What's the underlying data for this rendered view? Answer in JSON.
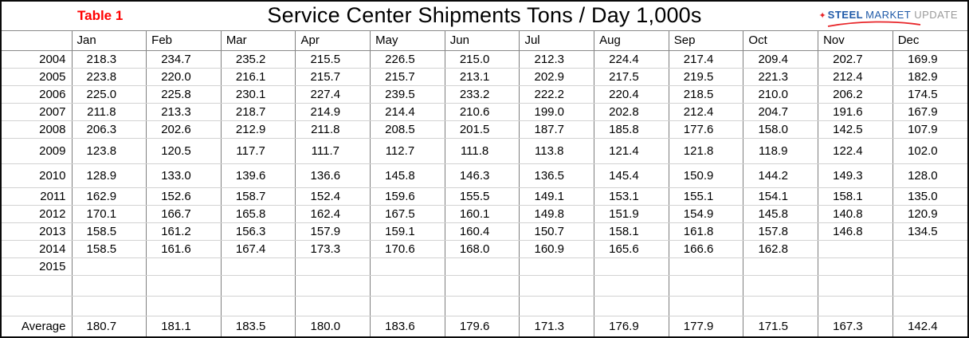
{
  "header": {
    "table_label": "Table 1",
    "title": "Service Center Shipments Tons / Day 1,000s",
    "logo": {
      "steel": "STEEL",
      "market": "MARKET",
      "update": "UPDATE"
    }
  },
  "colors": {
    "table_label_red": "#ff0000",
    "logo_blue": "#1f5aa8",
    "logo_gray": "#9a9a9a",
    "logo_red": "#e8262a"
  },
  "chart_data": {
    "type": "table",
    "title": "Service Center Shipments Tons / Day 1,000s",
    "months": [
      "Jan",
      "Feb",
      "Mar",
      "Apr",
      "May",
      "Jun",
      "Jul",
      "Aug",
      "Sep",
      "Oct",
      "Nov",
      "Dec"
    ],
    "rows": [
      {
        "label": "2004",
        "values": [
          "218.3",
          "234.7",
          "235.2",
          "215.5",
          "226.5",
          "215.0",
          "212.3",
          "224.4",
          "217.4",
          "209.4",
          "202.7",
          "169.9"
        ]
      },
      {
        "label": "2005",
        "values": [
          "223.8",
          "220.0",
          "216.1",
          "215.7",
          "215.7",
          "213.1",
          "202.9",
          "217.5",
          "219.5",
          "221.3",
          "212.4",
          "182.9"
        ]
      },
      {
        "label": "2006",
        "values": [
          "225.0",
          "225.8",
          "230.1",
          "227.4",
          "239.5",
          "233.2",
          "222.2",
          "220.4",
          "218.5",
          "210.0",
          "206.2",
          "174.5"
        ]
      },
      {
        "label": "2007",
        "values": [
          "211.8",
          "213.3",
          "218.7",
          "214.9",
          "214.4",
          "210.6",
          "199.0",
          "202.8",
          "212.4",
          "204.7",
          "191.6",
          "167.9"
        ]
      },
      {
        "label": "2008",
        "values": [
          "206.3",
          "202.6",
          "212.9",
          "211.8",
          "208.5",
          "201.5",
          "187.7",
          "185.8",
          "177.6",
          "158.0",
          "142.5",
          "107.9"
        ]
      },
      {
        "label": "2009",
        "values": [
          "123.8",
          "120.5",
          "117.7",
          "111.7",
          "112.7",
          "111.8",
          "113.8",
          "121.4",
          "121.8",
          "118.9",
          "122.4",
          "102.0"
        ]
      },
      {
        "label": "2010",
        "values": [
          "128.9",
          "133.0",
          "139.6",
          "136.6",
          "145.8",
          "146.3",
          "136.5",
          "145.4",
          "150.9",
          "144.2",
          "149.3",
          "128.0"
        ]
      },
      {
        "label": "2011",
        "values": [
          "162.9",
          "152.6",
          "158.7",
          "152.4",
          "159.6",
          "155.5",
          "149.1",
          "153.1",
          "155.1",
          "154.1",
          "158.1",
          "135.0"
        ]
      },
      {
        "label": "2012",
        "values": [
          "170.1",
          "166.7",
          "165.8",
          "162.4",
          "167.5",
          "160.1",
          "149.8",
          "151.9",
          "154.9",
          "145.8",
          "140.8",
          "120.9"
        ]
      },
      {
        "label": "2013",
        "values": [
          "158.5",
          "161.2",
          "156.3",
          "157.9",
          "159.1",
          "160.4",
          "150.7",
          "158.1",
          "161.8",
          "157.8",
          "146.8",
          "134.5"
        ]
      },
      {
        "label": "2014",
        "values": [
          "158.5",
          "161.6",
          "167.4",
          "173.3",
          "170.6",
          "168.0",
          "160.9",
          "165.6",
          "166.6",
          "162.8",
          "",
          ""
        ]
      },
      {
        "label": "2015",
        "values": [
          "",
          "",
          "",
          "",
          "",
          "",
          "",
          "",
          "",
          "",
          "",
          ""
        ]
      },
      {
        "label": "",
        "values": [
          "",
          "",
          "",
          "",
          "",
          "",
          "",
          "",
          "",
          "",
          "",
          ""
        ]
      },
      {
        "label": "",
        "values": [
          "",
          "",
          "",
          "",
          "",
          "",
          "",
          "",
          "",
          "",
          "",
          ""
        ]
      },
      {
        "label": "Average",
        "values": [
          "180.7",
          "181.1",
          "183.5",
          "180.0",
          "183.6",
          "179.6",
          "171.3",
          "176.9",
          "177.9",
          "171.5",
          "167.3",
          "142.4"
        ]
      }
    ]
  }
}
